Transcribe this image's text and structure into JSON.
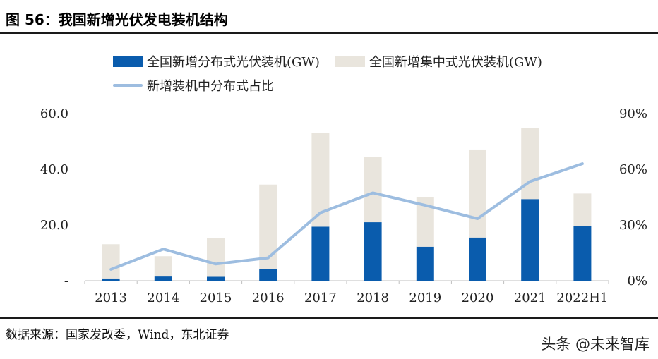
{
  "title": "图 56：我国新增光伏发电装机结构",
  "source": "数据来源：国家发改委，Wind，东北证券",
  "watermark": "头条 @未来智库",
  "colors": {
    "distributed": "#0a5cad",
    "centralized": "#e9e5dd",
    "share_line": "#9dbde0",
    "axis": "#bfbfbf"
  },
  "chart_data": {
    "type": "bar",
    "stacked": true,
    "categories": [
      "2013",
      "2014",
      "2015",
      "2016",
      "2017",
      "2018",
      "2019",
      "2020",
      "2021",
      "2022H1"
    ],
    "series": [
      {
        "name": "全国新增分布式光伏装机(GW)",
        "type": "bar",
        "axis": "left",
        "values": [
          0.8,
          1.5,
          1.4,
          4.3,
          19.4,
          21.0,
          12.2,
          15.5,
          29.3,
          19.7
        ]
      },
      {
        "name": "全国新增集中式光伏装机(GW)",
        "type": "bar",
        "axis": "left",
        "values": [
          12.3,
          7.3,
          14.0,
          30.2,
          33.6,
          23.3,
          17.9,
          31.6,
          25.6,
          11.6
        ]
      },
      {
        "name": "新增装机中分布式占比",
        "type": "line",
        "axis": "right",
        "values": [
          6.1,
          17.0,
          9.0,
          12.3,
          36.6,
          47.3,
          40.6,
          33.4,
          53.4,
          63.0
        ]
      }
    ],
    "y_left": {
      "ylim": [
        0,
        60
      ],
      "ticks": [
        "-",
        "20.0",
        "40.0",
        "60.0"
      ]
    },
    "y_right": {
      "ylim": [
        0,
        90
      ],
      "ticks": [
        "0%",
        "30%",
        "60%",
        "90%"
      ]
    },
    "grid": false,
    "legend_position": "top"
  }
}
